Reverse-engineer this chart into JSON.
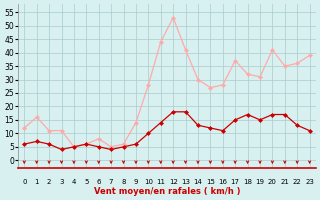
{
  "hours": [
    0,
    1,
    2,
    3,
    4,
    5,
    6,
    7,
    8,
    9,
    10,
    11,
    12,
    13,
    14,
    15,
    16,
    17,
    18,
    19,
    20,
    21,
    22,
    23
  ],
  "wind_avg": [
    6,
    7,
    6,
    4,
    5,
    6,
    5,
    4,
    5,
    6,
    10,
    14,
    18,
    18,
    13,
    12,
    11,
    15,
    17,
    15,
    17,
    17,
    13,
    11
  ],
  "wind_gust": [
    12,
    16,
    11,
    11,
    5,
    6,
    8,
    5,
    6,
    14,
    28,
    44,
    53,
    41,
    30,
    27,
    28,
    37,
    32,
    31,
    41,
    35,
    36,
    39
  ],
  "color_avg": "#cc0000",
  "color_gust": "#ffaaaa",
  "bg_color": "#d8f0f0",
  "grid_color": "#aacccc",
  "xlabel": "Vent moyen/en rafales ( km/h )",
  "yticks": [
    0,
    5,
    10,
    15,
    20,
    25,
    30,
    35,
    40,
    45,
    50,
    55
  ],
  "ylim": [
    -3,
    58
  ],
  "xlim": [
    -0.5,
    23.5
  ]
}
